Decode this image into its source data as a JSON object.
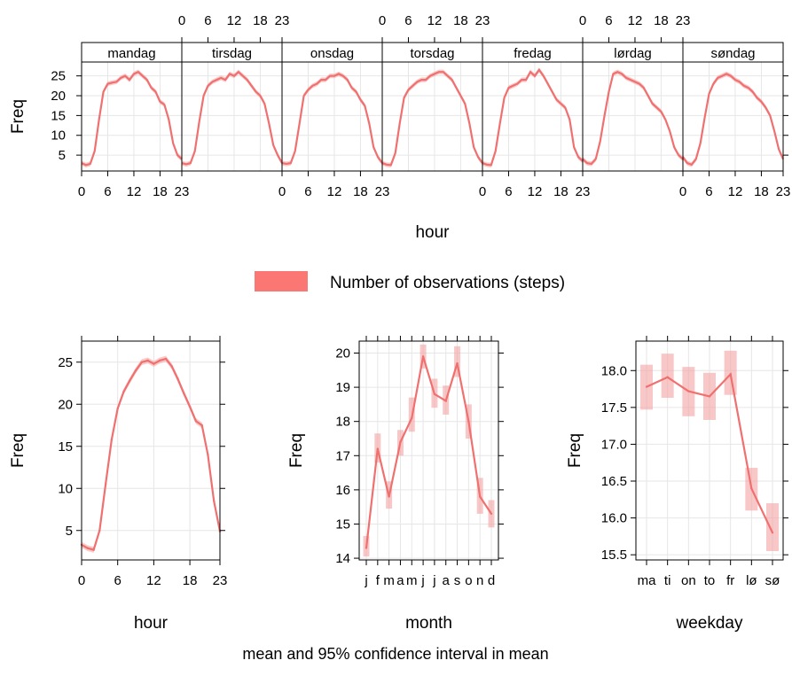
{
  "colors": {
    "line": "#f07070",
    "band": "#f4a3a3",
    "legend": "#fa7774",
    "grid": "#e6e6e6"
  },
  "legend": {
    "label": "Number of observations (steps)"
  },
  "caption": "mean and 95% confidence interval in mean",
  "chart_data": [
    {
      "type": "line",
      "panel": "top",
      "layout": "7 panels side by side",
      "xlabel": "hour",
      "ylabel": "Freq",
      "xlim": [
        0,
        23
      ],
      "ylim": [
        1,
        28.5
      ],
      "x_ticks": [
        0,
        6,
        12,
        18,
        23
      ],
      "y_ticks": [
        5,
        10,
        15,
        20,
        25
      ],
      "grid": true,
      "hours": [
        0,
        1,
        2,
        3,
        4,
        5,
        6,
        7,
        8,
        9,
        10,
        11,
        12,
        13,
        14,
        15,
        16,
        17,
        18,
        19,
        20,
        21,
        22,
        23
      ],
      "panels": [
        {
          "name": "mandag",
          "values": [
            3.0,
            2.5,
            2.8,
            6.0,
            14.0,
            21.0,
            23.0,
            23.3,
            23.5,
            24.5,
            25.0,
            24.0,
            25.5,
            26.0,
            25.0,
            24.0,
            22.0,
            21.0,
            18.5,
            17.8,
            14.0,
            8.0,
            5.0,
            4.0
          ]
        },
        {
          "name": "tirsdag",
          "values": [
            3.0,
            2.7,
            3.0,
            6.0,
            13.5,
            20.0,
            22.5,
            23.5,
            24.0,
            24.5,
            24.0,
            25.5,
            25.0,
            26.0,
            25.0,
            24.0,
            22.5,
            21.0,
            20.0,
            18.0,
            13.0,
            7.5,
            5.0,
            3.0
          ]
        },
        {
          "name": "onsdag",
          "values": [
            3.0,
            2.8,
            3.0,
            6.0,
            13.0,
            20.0,
            21.5,
            22.5,
            23.0,
            24.0,
            24.0,
            25.0,
            25.0,
            25.5,
            25.0,
            24.0,
            22.0,
            21.0,
            19.0,
            17.5,
            13.0,
            7.0,
            4.5,
            3.0
          ]
        },
        {
          "name": "torsdag",
          "values": [
            3.0,
            2.6,
            2.5,
            5.5,
            13.0,
            19.5,
            21.5,
            22.5,
            23.5,
            24.0,
            24.0,
            25.0,
            25.5,
            26.0,
            26.0,
            25.0,
            24.0,
            22.0,
            20.0,
            18.0,
            13.0,
            7.0,
            4.5,
            3.0
          ]
        },
        {
          "name": "fredag",
          "values": [
            3.0,
            2.6,
            2.5,
            6.0,
            13.0,
            19.5,
            22.0,
            22.5,
            23.0,
            24.0,
            24.0,
            26.0,
            25.0,
            26.5,
            25.0,
            23.0,
            21.0,
            19.0,
            18.0,
            17.0,
            14.0,
            7.0,
            4.5,
            3.5
          ]
        },
        {
          "name": "lørdag",
          "values": [
            4.0,
            3.0,
            2.8,
            4.0,
            8.5,
            15.0,
            21.0,
            25.5,
            26.0,
            25.5,
            24.5,
            24.0,
            23.5,
            23.0,
            22.0,
            20.0,
            18.0,
            17.0,
            16.0,
            14.0,
            11.0,
            7.0,
            5.0,
            4.0
          ]
        },
        {
          "name": "søndag",
          "values": [
            4.5,
            3.0,
            2.6,
            4.0,
            8.0,
            14.5,
            20.5,
            23.0,
            24.5,
            25.0,
            25.5,
            25.0,
            24.0,
            23.5,
            22.5,
            22.0,
            21.0,
            19.5,
            18.5,
            17.0,
            15.0,
            11.0,
            6.5,
            4.0
          ]
        }
      ]
    },
    {
      "type": "line",
      "panel": "hour",
      "xlabel": "hour",
      "ylabel": "Freq",
      "xlim": [
        0,
        23
      ],
      "ylim": [
        1.5,
        27.5
      ],
      "x_ticks": [
        0,
        6,
        12,
        18,
        23
      ],
      "y_ticks": [
        5,
        10,
        15,
        20,
        25
      ],
      "grid": true,
      "x": [
        0,
        1,
        2,
        3,
        4,
        5,
        6,
        7,
        8,
        9,
        10,
        11,
        12,
        13,
        14,
        15,
        16,
        17,
        18,
        19,
        20,
        21,
        22,
        23
      ],
      "values": [
        3.3,
        2.9,
        2.7,
        5.0,
        10.5,
        15.8,
        19.5,
        21.5,
        22.8,
        24.0,
        25.0,
        25.2,
        24.8,
        25.2,
        25.4,
        24.5,
        23.0,
        21.3,
        19.7,
        18.0,
        17.5,
        14.0,
        8.5,
        4.9
      ]
    },
    {
      "type": "line",
      "panel": "month",
      "xlabel": "month",
      "ylabel": "Freq",
      "ylim": [
        13.95,
        20.35
      ],
      "y_ticks": [
        14,
        15,
        16,
        17,
        18,
        19,
        20
      ],
      "grid": true,
      "categories": [
        "j",
        "f",
        "m",
        "a",
        "m",
        "j",
        "j",
        "a",
        "s",
        "o",
        "n",
        "d"
      ],
      "values": [
        14.3,
        17.2,
        15.8,
        17.4,
        18.1,
        19.9,
        18.8,
        18.6,
        19.7,
        18.0,
        15.8,
        15.3
      ],
      "ci_lower": [
        14.05,
        16.8,
        15.45,
        17.0,
        17.7,
        19.55,
        18.4,
        18.2,
        19.3,
        17.5,
        15.3,
        14.9
      ],
      "ci_upper": [
        14.65,
        17.65,
        16.25,
        17.75,
        18.7,
        20.25,
        19.25,
        19.05,
        20.2,
        18.5,
        16.35,
        15.7
      ]
    },
    {
      "type": "line",
      "panel": "weekday",
      "xlabel": "weekday",
      "ylabel": "Freq",
      "ylim": [
        15.43,
        18.4
      ],
      "y_ticks": [
        15.5,
        16.0,
        16.5,
        17.0,
        17.5,
        18.0
      ],
      "y_tick_labels": [
        "15.5",
        "16.0",
        "16.5",
        "17.0",
        "17.5",
        "18.0"
      ],
      "grid": true,
      "categories": [
        "ma",
        "ti",
        "on",
        "to",
        "fr",
        "lø",
        "sø"
      ],
      "values": [
        17.78,
        17.91,
        17.72,
        17.65,
        17.95,
        16.4,
        15.8
      ],
      "ci_lower": [
        17.47,
        17.63,
        17.38,
        17.33,
        17.67,
        16.1,
        15.55
      ],
      "ci_upper": [
        18.08,
        18.23,
        18.05,
        17.97,
        18.27,
        16.68,
        16.2
      ]
    }
  ]
}
